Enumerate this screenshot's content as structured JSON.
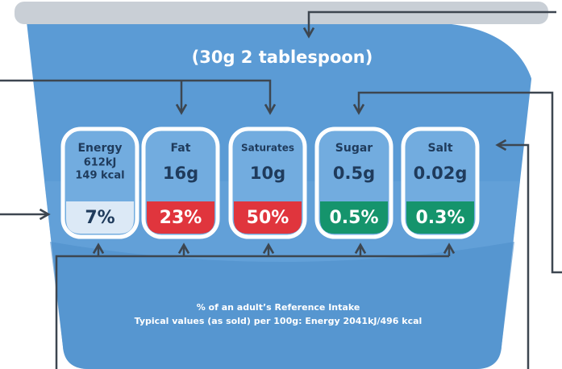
{
  "serving": "(30g 2 tablespoon)",
  "labels": [
    {
      "name": "Energy",
      "amount": [
        "612kJ",
        "149 kcal"
      ],
      "percent": "7%",
      "level": "none"
    },
    {
      "name": "Fat",
      "amount": [
        "16g"
      ],
      "percent": "23%",
      "level": "high"
    },
    {
      "name": "Saturates",
      "amount": [
        "10g"
      ],
      "percent": "50%",
      "level": "high"
    },
    {
      "name": "Sugar",
      "amount": [
        "0.5g"
      ],
      "percent": "0.5%",
      "level": "low"
    },
    {
      "name": "Salt",
      "amount": [
        "0.02g"
      ],
      "percent": "0.3%",
      "level": "low"
    }
  ],
  "footer": [
    "% of an adult’s Reference Intake",
    "Typical values (as sold) per 100g: Energy 2041kJ/496 kcal"
  ]
}
